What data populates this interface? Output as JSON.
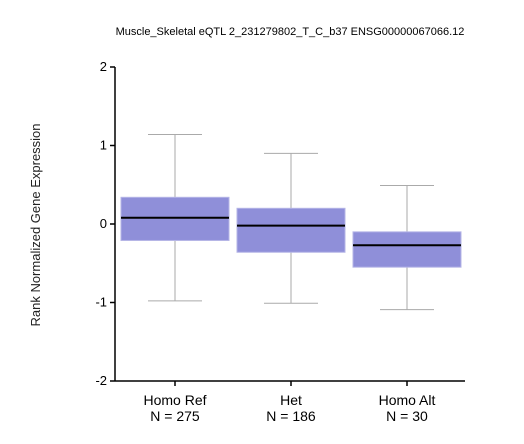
{
  "chart_data": {
    "type": "box",
    "title": "Muscle_Skeletal eQTL 2_231279802_T_C_b37 ENSG00000067066.12",
    "ylabel": "Rank Normalized Gene Expression",
    "xlabel": "",
    "ylim": [
      -2,
      2
    ],
    "yticks": [
      -2,
      -1,
      0,
      1,
      2
    ],
    "box_color": "#8f8fd9",
    "categories": [
      {
        "label": "Homo Ref",
        "n_label": "N = 275"
      },
      {
        "label": "Het",
        "n_label": "N = 186"
      },
      {
        "label": "Homo Alt",
        "n_label": "N = 30"
      }
    ],
    "boxes": [
      {
        "whisker_low": -0.98,
        "q1": -0.21,
        "median": 0.08,
        "q3": 0.34,
        "whisker_high": 1.14
      },
      {
        "whisker_low": -1.01,
        "q1": -0.36,
        "median": -0.02,
        "q3": 0.2,
        "whisker_high": 0.9
      },
      {
        "whisker_low": -1.09,
        "q1": -0.55,
        "median": -0.27,
        "q3": -0.1,
        "whisker_high": 0.49
      }
    ]
  }
}
